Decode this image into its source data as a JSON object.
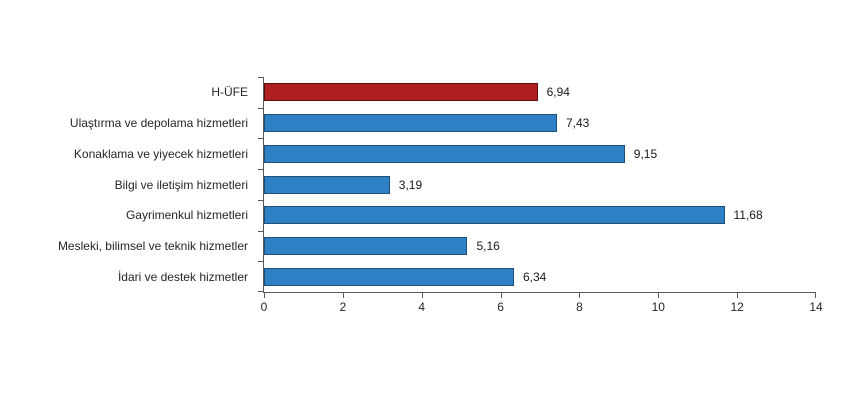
{
  "chart_data": {
    "type": "bar",
    "orientation": "horizontal",
    "title": "",
    "xlabel": "",
    "ylabel": "",
    "categories": [
      "H-ÜFE",
      "Ulaştırma ve depolama hizmetleri",
      "Konaklama ve yiyecek hizmetleri",
      "Bilgi ve iletişim hizmetleri",
      "Gayrimenkul hizmetleri",
      "Mesleki, bilimsel ve teknik hizmetler",
      "İdari ve destek hizmetler"
    ],
    "values": [
      6.94,
      7.43,
      9.15,
      3.19,
      11.68,
      5.16,
      6.34
    ],
    "value_labels": [
      "6,94",
      "7,43",
      "9,15",
      "3,19",
      "11,68",
      "5,16",
      "6,34"
    ],
    "highlight_index": 0,
    "xlim": [
      0,
      14
    ],
    "xticks": [
      0,
      2,
      4,
      6,
      8,
      10,
      12,
      14
    ],
    "grid": false,
    "legend": null,
    "colors": {
      "bar_fill": "#2E81C4",
      "bar_border": "#1F4E79",
      "highlight_fill": "#B01F1F",
      "highlight_border": "#5A1010",
      "axis": "#595959",
      "text": "#262626",
      "background": "#FFFFFF"
    }
  }
}
